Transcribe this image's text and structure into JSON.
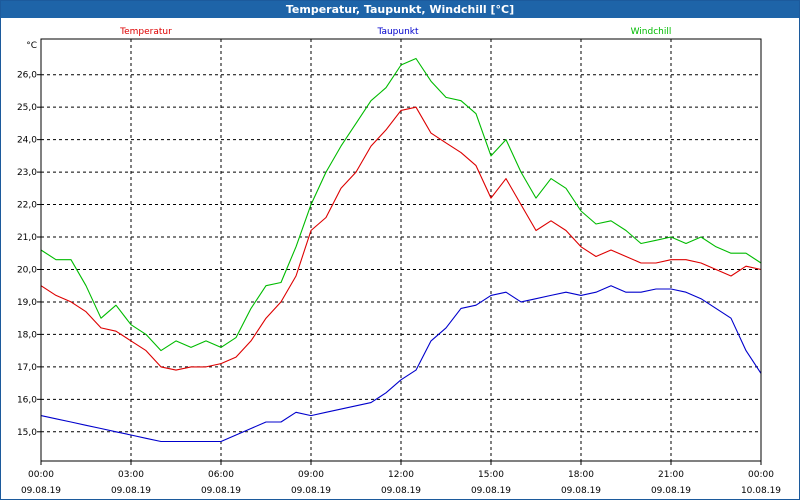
{
  "window": {
    "title": "Temperatur, Taupunkt, Windchill [°C]"
  },
  "chart_data": {
    "type": "line",
    "title": "Temperatur, Taupunkt, Windchill [°C]",
    "ylabel": "°C",
    "xlabel": "",
    "ylim": [
      14.1,
      27.1
    ],
    "xlim": [
      0,
      24
    ],
    "grid": true,
    "legend_position": "top",
    "y_ticks": [
      "15,0",
      "16,0",
      "17,0",
      "18,0",
      "19,0",
      "20,0",
      "21,0",
      "22,0",
      "23,0",
      "24,0",
      "25,0",
      "26,0"
    ],
    "x_ticks": [
      {
        "time": "00:00",
        "date": "09.08.19"
      },
      {
        "time": "03:00",
        "date": "09.08.19"
      },
      {
        "time": "06:00",
        "date": "09.08.19"
      },
      {
        "time": "09:00",
        "date": "09.08.19"
      },
      {
        "time": "12:00",
        "date": "09.08.19"
      },
      {
        "time": "15:00",
        "date": "09.08.19"
      },
      {
        "time": "18:00",
        "date": "09.08.19"
      },
      {
        "time": "21:00",
        "date": "09.08.19"
      },
      {
        "time": "00:00",
        "date": "10.08.19"
      }
    ],
    "series": [
      {
        "name": "Temperatur",
        "color": "#dd0000",
        "points": [
          [
            0,
            19.5
          ],
          [
            0.5,
            19.2
          ],
          [
            1,
            19.0
          ],
          [
            1.5,
            18.7
          ],
          [
            2,
            18.2
          ],
          [
            2.5,
            18.1
          ],
          [
            3,
            17.8
          ],
          [
            3.5,
            17.5
          ],
          [
            4,
            17.0
          ],
          [
            4.5,
            16.9
          ],
          [
            5,
            17.0
          ],
          [
            5.5,
            17.0
          ],
          [
            6,
            17.1
          ],
          [
            6.5,
            17.3
          ],
          [
            7,
            17.8
          ],
          [
            7.5,
            18.5
          ],
          [
            8,
            19.0
          ],
          [
            8.5,
            19.8
          ],
          [
            9,
            21.2
          ],
          [
            9.5,
            21.6
          ],
          [
            10,
            22.5
          ],
          [
            10.5,
            23.0
          ],
          [
            11,
            23.8
          ],
          [
            11.5,
            24.3
          ],
          [
            12,
            24.9
          ],
          [
            12.5,
            25.0
          ],
          [
            13,
            24.2
          ],
          [
            13.5,
            23.9
          ],
          [
            14,
            23.6
          ],
          [
            14.5,
            23.2
          ],
          [
            15,
            22.2
          ],
          [
            15.5,
            22.8
          ],
          [
            16,
            22.0
          ],
          [
            16.5,
            21.2
          ],
          [
            17,
            21.5
          ],
          [
            17.5,
            21.2
          ],
          [
            18,
            20.7
          ],
          [
            18.5,
            20.4
          ],
          [
            19,
            20.6
          ],
          [
            19.5,
            20.4
          ],
          [
            20,
            20.2
          ],
          [
            20.5,
            20.2
          ],
          [
            21,
            20.3
          ],
          [
            21.5,
            20.3
          ],
          [
            22,
            20.2
          ],
          [
            22.5,
            20.0
          ],
          [
            23,
            19.8
          ],
          [
            23.5,
            20.1
          ],
          [
            24,
            20.0
          ]
        ]
      },
      {
        "name": "Taupunkt",
        "color": "#0000cc",
        "points": [
          [
            0,
            15.5
          ],
          [
            0.5,
            15.4
          ],
          [
            1,
            15.3
          ],
          [
            1.5,
            15.2
          ],
          [
            2,
            15.1
          ],
          [
            2.5,
            15.0
          ],
          [
            3,
            14.9
          ],
          [
            3.5,
            14.8
          ],
          [
            4,
            14.7
          ],
          [
            4.5,
            14.7
          ],
          [
            5,
            14.7
          ],
          [
            5.5,
            14.7
          ],
          [
            6,
            14.7
          ],
          [
            6.5,
            14.9
          ],
          [
            7,
            15.1
          ],
          [
            7.5,
            15.3
          ],
          [
            8,
            15.3
          ],
          [
            8.5,
            15.6
          ],
          [
            9,
            15.5
          ],
          [
            9.5,
            15.6
          ],
          [
            10,
            15.7
          ],
          [
            10.5,
            15.8
          ],
          [
            11,
            15.9
          ],
          [
            11.5,
            16.2
          ],
          [
            12,
            16.6
          ],
          [
            12.5,
            16.9
          ],
          [
            13,
            17.8
          ],
          [
            13.5,
            18.2
          ],
          [
            14,
            18.8
          ],
          [
            14.5,
            18.9
          ],
          [
            15,
            19.2
          ],
          [
            15.5,
            19.3
          ],
          [
            16,
            19.0
          ],
          [
            16.5,
            19.1
          ],
          [
            17,
            19.2
          ],
          [
            17.5,
            19.3
          ],
          [
            18,
            19.2
          ],
          [
            18.5,
            19.3
          ],
          [
            19,
            19.5
          ],
          [
            19.5,
            19.3
          ],
          [
            20,
            19.3
          ],
          [
            20.5,
            19.4
          ],
          [
            21,
            19.4
          ],
          [
            21.5,
            19.3
          ],
          [
            22,
            19.1
          ],
          [
            22.5,
            18.8
          ],
          [
            23,
            18.5
          ],
          [
            23.5,
            17.5
          ],
          [
            24,
            16.8
          ]
        ]
      },
      {
        "name": "Windchill",
        "color": "#00bb00",
        "points": [
          [
            0,
            20.6
          ],
          [
            0.5,
            20.3
          ],
          [
            1,
            20.3
          ],
          [
            1.5,
            19.5
          ],
          [
            2,
            18.5
          ],
          [
            2.5,
            18.9
          ],
          [
            3,
            18.3
          ],
          [
            3.5,
            18.0
          ],
          [
            4,
            17.5
          ],
          [
            4.5,
            17.8
          ],
          [
            5,
            17.6
          ],
          [
            5.5,
            17.8
          ],
          [
            6,
            17.6
          ],
          [
            6.5,
            17.9
          ],
          [
            7,
            18.8
          ],
          [
            7.5,
            19.5
          ],
          [
            8,
            19.6
          ],
          [
            8.5,
            20.7
          ],
          [
            9,
            22.0
          ],
          [
            9.5,
            23.0
          ],
          [
            10,
            23.8
          ],
          [
            10.5,
            24.5
          ],
          [
            11,
            25.2
          ],
          [
            11.5,
            25.6
          ],
          [
            12,
            26.3
          ],
          [
            12.5,
            26.5
          ],
          [
            13,
            25.8
          ],
          [
            13.5,
            25.3
          ],
          [
            14,
            25.2
          ],
          [
            14.5,
            24.8
          ],
          [
            15,
            23.5
          ],
          [
            15.5,
            24.0
          ],
          [
            16,
            23.0
          ],
          [
            16.5,
            22.2
          ],
          [
            17,
            22.8
          ],
          [
            17.5,
            22.5
          ],
          [
            18,
            21.8
          ],
          [
            18.5,
            21.4
          ],
          [
            19,
            21.5
          ],
          [
            19.5,
            21.2
          ],
          [
            20,
            20.8
          ],
          [
            20.5,
            20.9
          ],
          [
            21,
            21.0
          ],
          [
            21.5,
            20.8
          ],
          [
            22,
            21.0
          ],
          [
            22.5,
            20.7
          ],
          [
            23,
            20.5
          ],
          [
            23.5,
            20.5
          ],
          [
            24,
            20.2
          ]
        ]
      }
    ]
  }
}
